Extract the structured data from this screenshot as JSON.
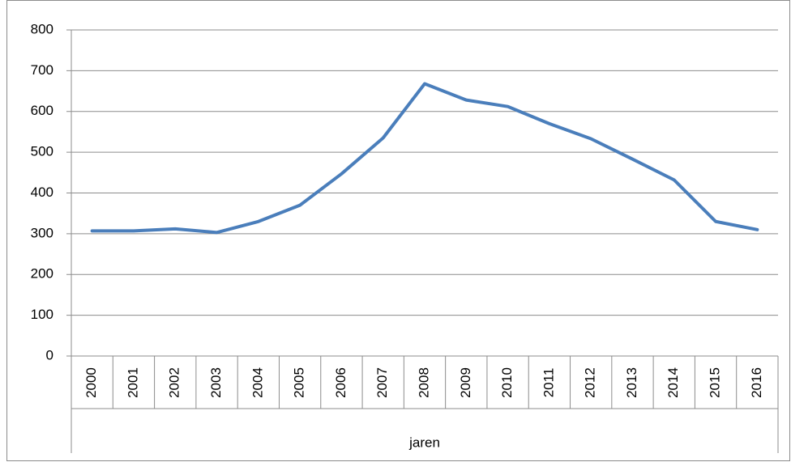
{
  "chart_data": {
    "type": "line",
    "x_label": "jaren",
    "categories": [
      "2000",
      "2001",
      "2002",
      "2003",
      "2004",
      "2005",
      "2006",
      "2007",
      "2008",
      "2009",
      "2010",
      "2011",
      "2012",
      "2013",
      "2014",
      "2015",
      "2016"
    ],
    "series": [
      {
        "name": null,
        "color": "#4a7ebb",
        "values": [
          307,
          307,
          312,
          303,
          330,
          370,
          447,
          535,
          668,
          628,
          612,
          570,
          533,
          483,
          432,
          330,
          310
        ]
      }
    ],
    "ylim": [
      0,
      800
    ],
    "yticks": [
      0,
      100,
      200,
      300,
      400,
      500,
      600,
      700,
      800
    ],
    "grid": true
  }
}
